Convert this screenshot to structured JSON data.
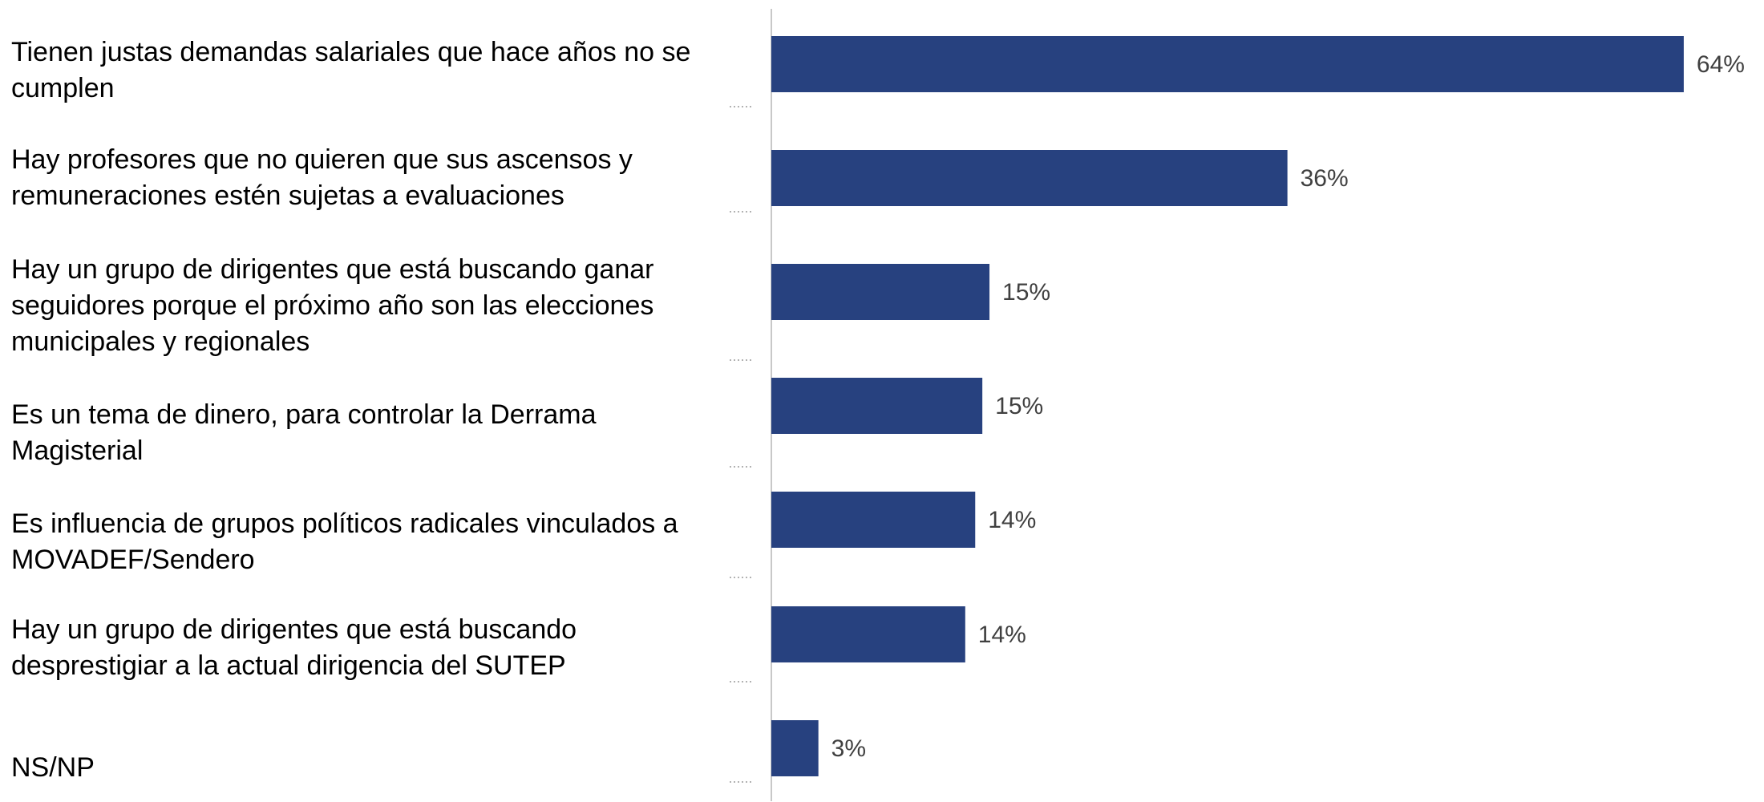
{
  "chart_data": {
    "type": "bar",
    "orientation": "horizontal",
    "color": "#27417f",
    "categories": [
      "Tienen justas demandas salariales que hace años no se cumplen",
      "Hay profesores que no quieren que sus ascensos y remuneraciones estén sujetas a evaluaciones",
      "Hay un grupo de dirigentes que está buscando ganar seguidores porque el próximo año son las elecciones municipales y regionales",
      "Es un tema de dinero, para controlar la Derrama Magisterial",
      "Es influencia de grupos políticos radicales vinculados a MOVADEF/Sendero",
      "Hay un grupo de dirigentes que está buscando desprestigiar a la actual dirigencia del SUTEP",
      "NS/NP"
    ],
    "values": [
      64,
      36.2,
      15.3,
      14.8,
      14.3,
      13.6,
      3.3
    ],
    "value_labels": [
      "64%",
      "36%",
      "15%",
      "15%",
      "14%",
      "14%",
      "3%"
    ]
  }
}
